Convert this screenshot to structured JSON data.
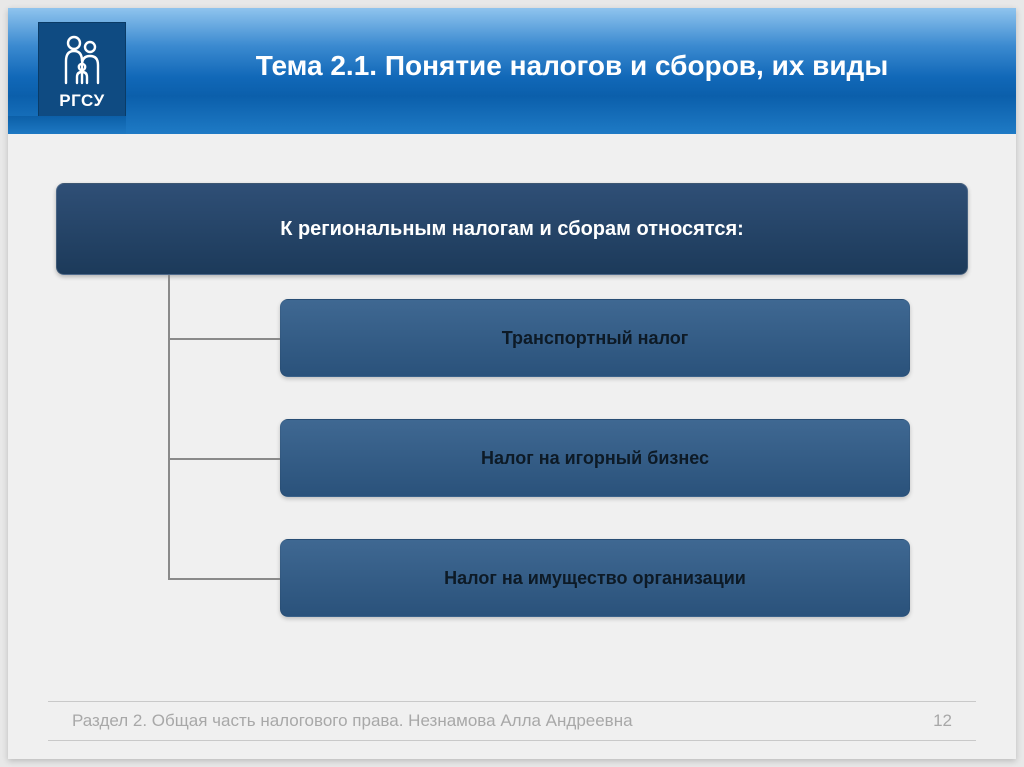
{
  "logo": {
    "label": "РГСУ",
    "bg": "#0f4b82",
    "icon_stroke": "#ffffff"
  },
  "header": {
    "title": "Тема 2.1. Понятие налогов и сборов, их виды",
    "title_color": "#ffffff",
    "title_fontsize": 28,
    "gradient_top": "#8fc4ee",
    "gradient_mid": "#1168b8",
    "gradient_bottom": "#1e7ac5"
  },
  "diagram": {
    "type": "tree",
    "connector_color": "#8a8a8a",
    "parent": {
      "label": "К региональным налогам и сборам относятся:",
      "bg_top": "#2f4f76",
      "bg_bottom": "#1c3a5a",
      "text_color": "#ffffff",
      "fontsize": 20,
      "radius": 8
    },
    "children": [
      {
        "label": "Транспортный налог",
        "bg_top": "#3f6892",
        "bg_bottom": "#2a527b",
        "text_color": "#0d1a26",
        "fontsize": 18,
        "radius": 8
      },
      {
        "label": "Налог на игорный бизнес",
        "bg_top": "#3f6892",
        "bg_bottom": "#2a527b",
        "text_color": "#0d1a26",
        "fontsize": 18,
        "radius": 8
      },
      {
        "label": "Налог на имущество организации",
        "bg_top": "#3f6892",
        "bg_bottom": "#2a527b",
        "text_color": "#0d1a26",
        "fontsize": 18,
        "radius": 8
      }
    ]
  },
  "footer": {
    "text": "Раздел 2. Общая часть налогового права. Незнамова Алла Андреевна",
    "page_number": "12",
    "text_color": "#a8a8a8",
    "border_color": "#c9c9c9",
    "fontsize": 17
  },
  "slide": {
    "background": "#f0f0f0",
    "page_background": "#e8e8e8"
  }
}
